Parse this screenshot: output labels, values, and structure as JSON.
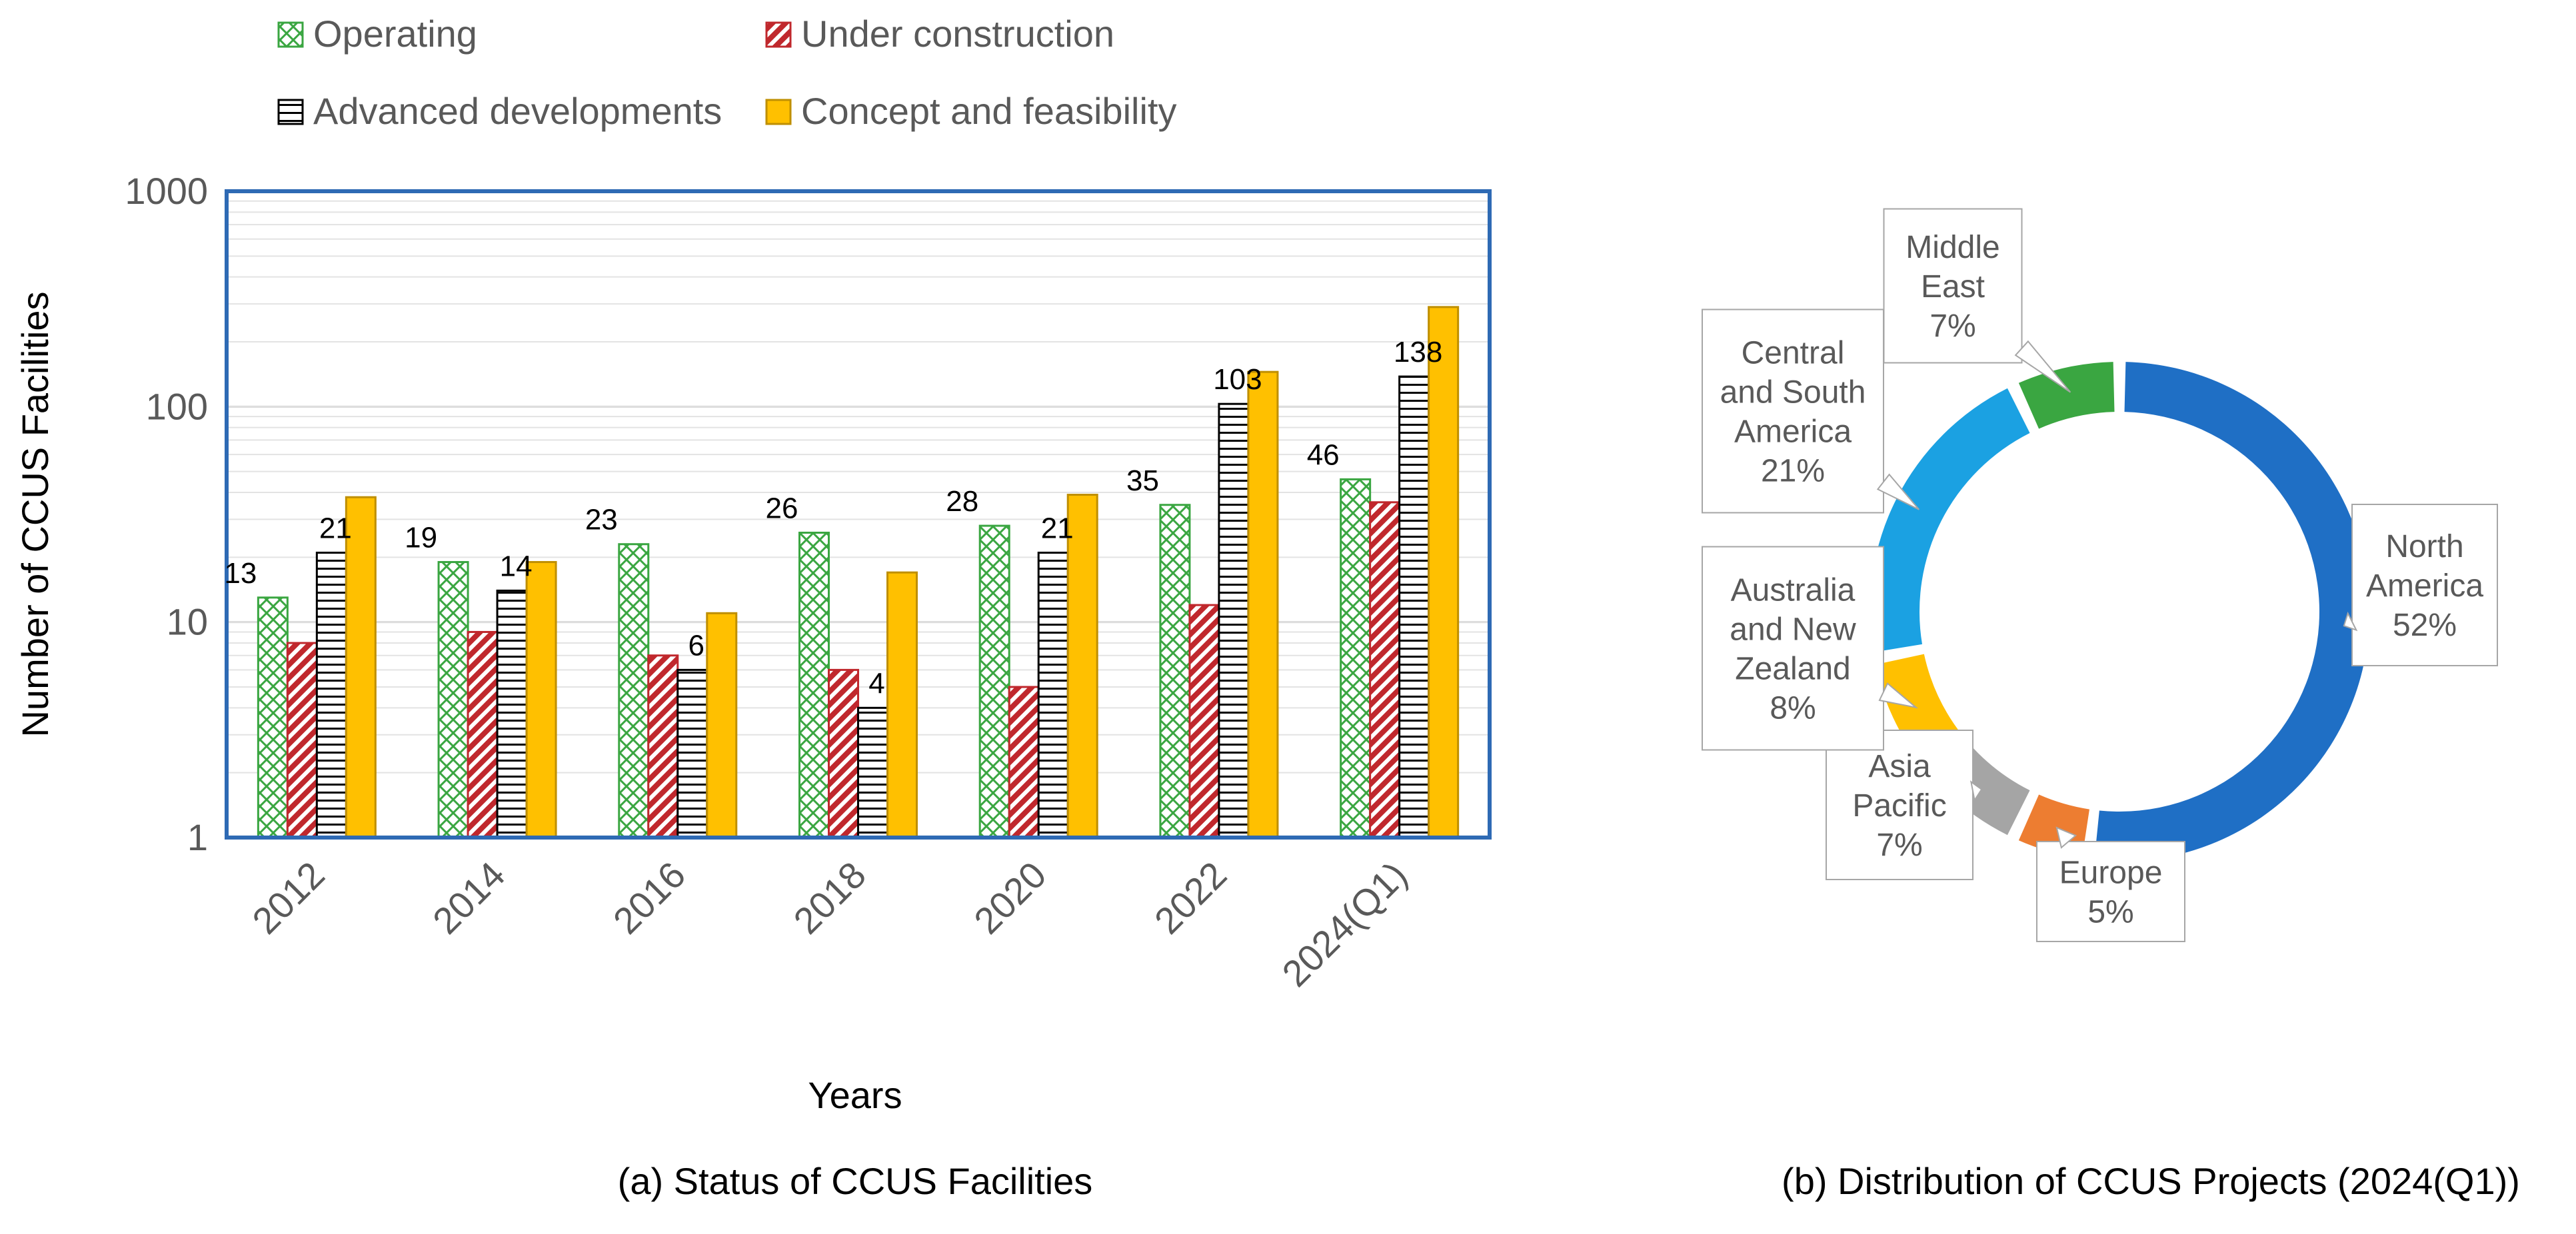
{
  "chart_data": [
    {
      "type": "bar",
      "title": "",
      "caption": "(a) Status of CCUS Facilities",
      "xlabel": "Years",
      "ylabel": "Number of CCUS Facilities",
      "yscale": "log",
      "ylim": [
        1,
        1000
      ],
      "yticks": [
        "1",
        "10",
        "100",
        "1000"
      ],
      "grid": "minor horizontal",
      "legend": "top",
      "categories": [
        "2012",
        "2014",
        "2016",
        "2018",
        "2020",
        "2022",
        "2024(Q1)"
      ],
      "series": [
        {
          "name": "Operating",
          "color": "#3aa641",
          "pattern": "cross-hatch",
          "values": [
            13,
            19,
            23,
            26,
            28,
            35,
            46
          ],
          "labels": [
            "13",
            "19",
            "23",
            "26",
            "28",
            "35",
            "46"
          ]
        },
        {
          "name": "Under construction",
          "color": "#c0282d",
          "pattern": "diagonal",
          "values": [
            8,
            9,
            7,
            6,
            5,
            12,
            36
          ],
          "labels": [
            "",
            "",
            "",
            "",
            "",
            "",
            ""
          ]
        },
        {
          "name": "Advanced developments",
          "color": "#000000",
          "pattern": "horizontal",
          "values": [
            21,
            14,
            6,
            4,
            21,
            103,
            138
          ],
          "labels": [
            "21",
            "14",
            "6",
            "4",
            "21",
            "103",
            "138"
          ]
        },
        {
          "name": "Concept and feasibility",
          "color": "#ffc000",
          "pattern": "solid",
          "values": [
            38,
            19,
            11,
            17,
            39,
            145,
            290
          ],
          "labels": [
            "",
            "",
            "",
            "",
            "",
            "",
            ""
          ]
        }
      ]
    },
    {
      "type": "pie",
      "variant": "donut",
      "caption": "(b) Distribution of CCUS Projects (2024(Q1))",
      "slices": [
        {
          "name": "North America",
          "label_lines": [
            "North",
            "America"
          ],
          "pct": "52%",
          "value": 52,
          "color": "#1f6fc5"
        },
        {
          "name": "Europe",
          "label_lines": [
            "Europe"
          ],
          "pct": "5%",
          "value": 5,
          "color": "#ed7d31"
        },
        {
          "name": "Asia Pacific",
          "label_lines": [
            "Asia",
            "Pacific"
          ],
          "pct": "7%",
          "value": 7,
          "color": "#a5a5a5"
        },
        {
          "name": "Australia and New Zealand",
          "label_lines": [
            "Australia",
            "and New",
            "Zealand"
          ],
          "pct": "8%",
          "value": 8,
          "color": "#ffc000"
        },
        {
          "name": "Central and South America",
          "label_lines": [
            "Central",
            "and South",
            "America"
          ],
          "pct": "21%",
          "value": 21,
          "color": "#1ba1e2"
        },
        {
          "name": "Middle East",
          "label_lines": [
            "Middle",
            "East"
          ],
          "pct": "7%",
          "value": 7,
          "color": "#3aa641"
        }
      ]
    }
  ]
}
